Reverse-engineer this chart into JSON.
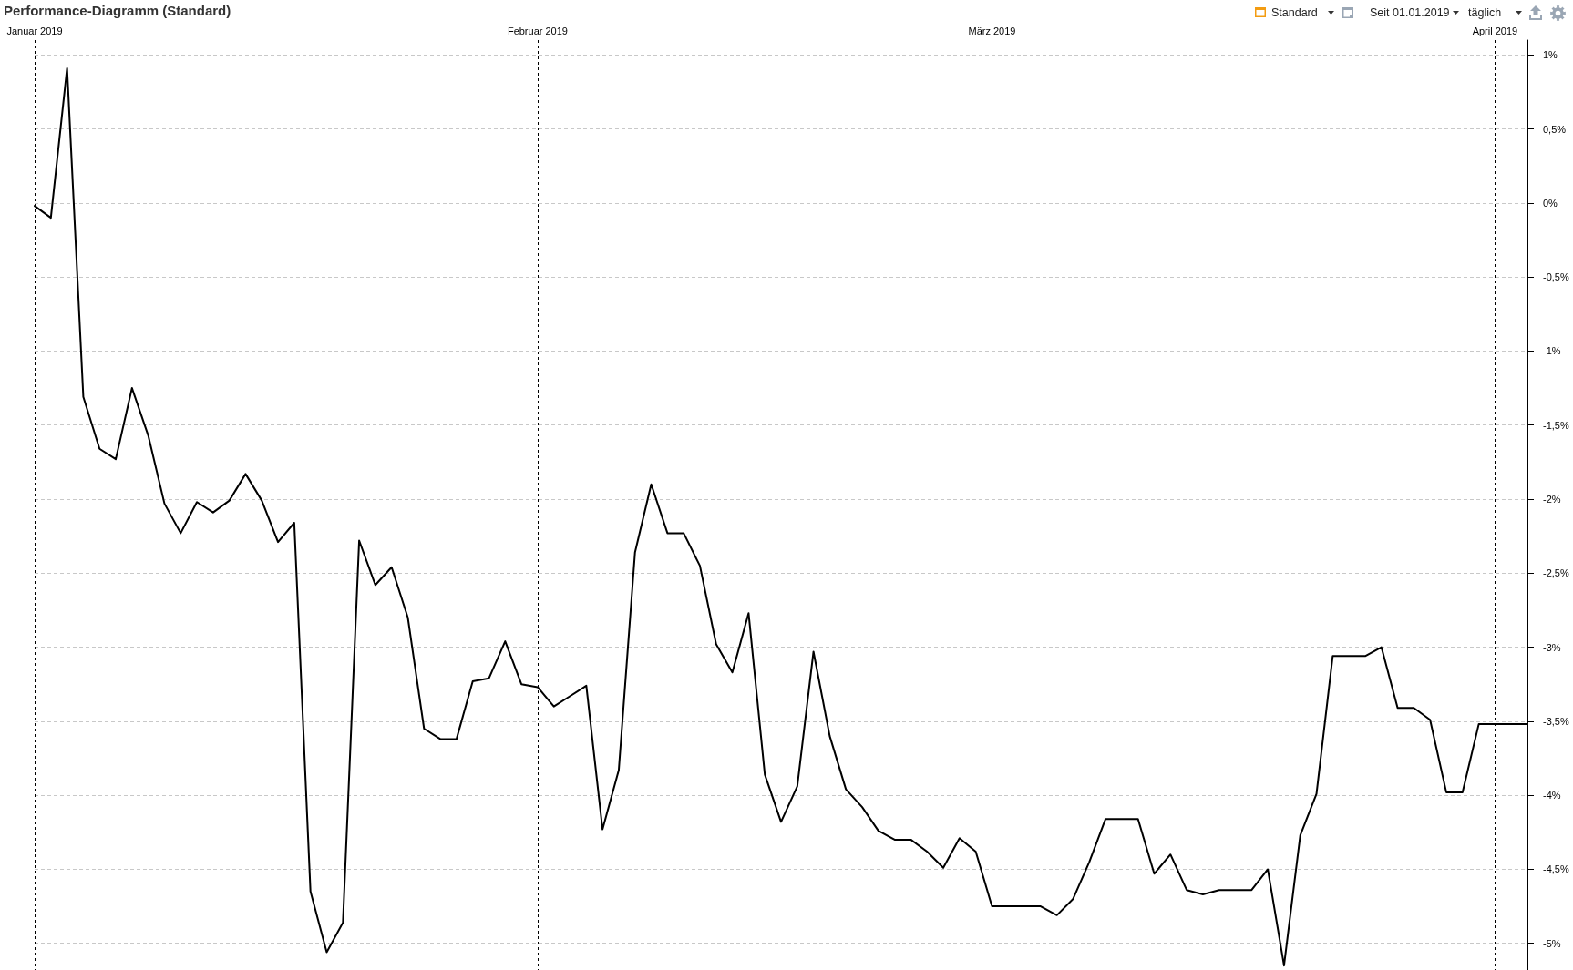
{
  "chart_data": {
    "type": "line",
    "title": "Performance-Diagramm (Standard)",
    "annotations": [
      "Standard",
      "Seit 01.01.2019",
      "täglich"
    ],
    "x": [
      "2019-01-01",
      "2019-01-02",
      "2019-01-03",
      "2019-01-04",
      "2019-01-05",
      "2019-01-06",
      "2019-01-07",
      "2019-01-08",
      "2019-01-09",
      "2019-01-10",
      "2019-01-11",
      "2019-01-12",
      "2019-01-13",
      "2019-01-14",
      "2019-01-15",
      "2019-01-16",
      "2019-01-17",
      "2019-01-18",
      "2019-01-19",
      "2019-01-20",
      "2019-01-21",
      "2019-01-22",
      "2019-01-23",
      "2019-01-24",
      "2019-01-25",
      "2019-01-26",
      "2019-01-27",
      "2019-01-28",
      "2019-01-29",
      "2019-01-30",
      "2019-01-31",
      "2019-02-01",
      "2019-02-02",
      "2019-02-03",
      "2019-02-04",
      "2019-02-05",
      "2019-02-06",
      "2019-02-07",
      "2019-02-08",
      "2019-02-09",
      "2019-02-10",
      "2019-02-11",
      "2019-02-12",
      "2019-02-13",
      "2019-02-14",
      "2019-02-15",
      "2019-02-16",
      "2019-02-17",
      "2019-02-18",
      "2019-02-19",
      "2019-02-20",
      "2019-02-21",
      "2019-02-22",
      "2019-02-23",
      "2019-02-24",
      "2019-02-25",
      "2019-02-26",
      "2019-02-27",
      "2019-02-28",
      "2019-03-01",
      "2019-03-02",
      "2019-03-03",
      "2019-03-04",
      "2019-03-05",
      "2019-03-06",
      "2019-03-07",
      "2019-03-08",
      "2019-03-09",
      "2019-03-10",
      "2019-03-11",
      "2019-03-12",
      "2019-03-13",
      "2019-03-14",
      "2019-03-15",
      "2019-03-16",
      "2019-03-17",
      "2019-03-18",
      "2019-03-19",
      "2019-03-20",
      "2019-03-21",
      "2019-03-22",
      "2019-03-23",
      "2019-03-24",
      "2019-03-25",
      "2019-03-26",
      "2019-03-27",
      "2019-03-28",
      "2019-03-29",
      "2019-03-30",
      "2019-03-31",
      "2019-04-01",
      "2019-04-02",
      "2019-04-03"
    ],
    "values": [
      -0.02,
      -0.1,
      0.91,
      -1.31,
      -1.66,
      -1.73,
      -1.25,
      -1.57,
      -2.03,
      -2.23,
      -2.02,
      -2.09,
      -2.01,
      -1.83,
      -2.01,
      -2.29,
      -2.16,
      -4.65,
      -5.06,
      -4.86,
      -2.28,
      -2.58,
      -2.46,
      -2.8,
      -3.55,
      -3.62,
      -3.62,
      -3.23,
      -3.21,
      -2.96,
      -3.25,
      -3.27,
      -3.4,
      -3.33,
      -3.26,
      -4.23,
      -3.83,
      -2.36,
      -1.9,
      -2.23,
      -2.23,
      -2.45,
      -2.98,
      -3.17,
      -2.77,
      -3.86,
      -4.18,
      -3.94,
      -3.03,
      -3.6,
      -3.96,
      -4.08,
      -4.24,
      -4.3,
      -4.3,
      -4.38,
      -4.49,
      -4.29,
      -4.38,
      -4.75,
      -4.75,
      -4.75,
      -4.75,
      -4.81,
      -4.7,
      -4.45,
      -4.16,
      -4.16,
      -4.16,
      -4.53,
      -4.4,
      -4.64,
      -4.67,
      -4.64,
      -4.64,
      -4.64,
      -4.5,
      -5.15,
      -4.27,
      -3.99,
      -3.06,
      -3.06,
      -3.06,
      -3.0,
      -3.41,
      -3.41,
      -3.49,
      -3.98,
      -3.98,
      -3.52,
      -3.52,
      -3.52,
      -3.52
    ],
    "color": "#000000",
    "marker": "none",
    "xlim": [
      "2019-01-01",
      "2019-04-03"
    ],
    "xticks": [
      {
        "value": "2019-01-01",
        "label": "Januar 2019"
      },
      {
        "value": "2019-02-01",
        "label": "Februar 2019"
      },
      {
        "value": "2019-03-01",
        "label": "März 2019"
      },
      {
        "value": "2019-04-01",
        "label": "April 2019"
      }
    ],
    "ylim": [
      -5.18,
      1.1
    ],
    "yticks": [
      {
        "value": 1,
        "label": "1%"
      },
      {
        "value": 0.5,
        "label": "0,5%"
      },
      {
        "value": 0,
        "label": "0%"
      },
      {
        "value": -0.5,
        "label": "-0,5%"
      },
      {
        "value": -1,
        "label": "-1%"
      },
      {
        "value": -1.5,
        "label": "-1,5%"
      },
      {
        "value": -2,
        "label": "-2%"
      },
      {
        "value": -2.5,
        "label": "-2,5%"
      },
      {
        "value": -3,
        "label": "-3%"
      },
      {
        "value": -3.5,
        "label": "-3,5%"
      },
      {
        "value": -4,
        "label": "-4%"
      },
      {
        "value": -4.5,
        "label": "-4,5%"
      },
      {
        "value": -5,
        "label": "-5%"
      }
    ],
    "grid": true
  }
}
